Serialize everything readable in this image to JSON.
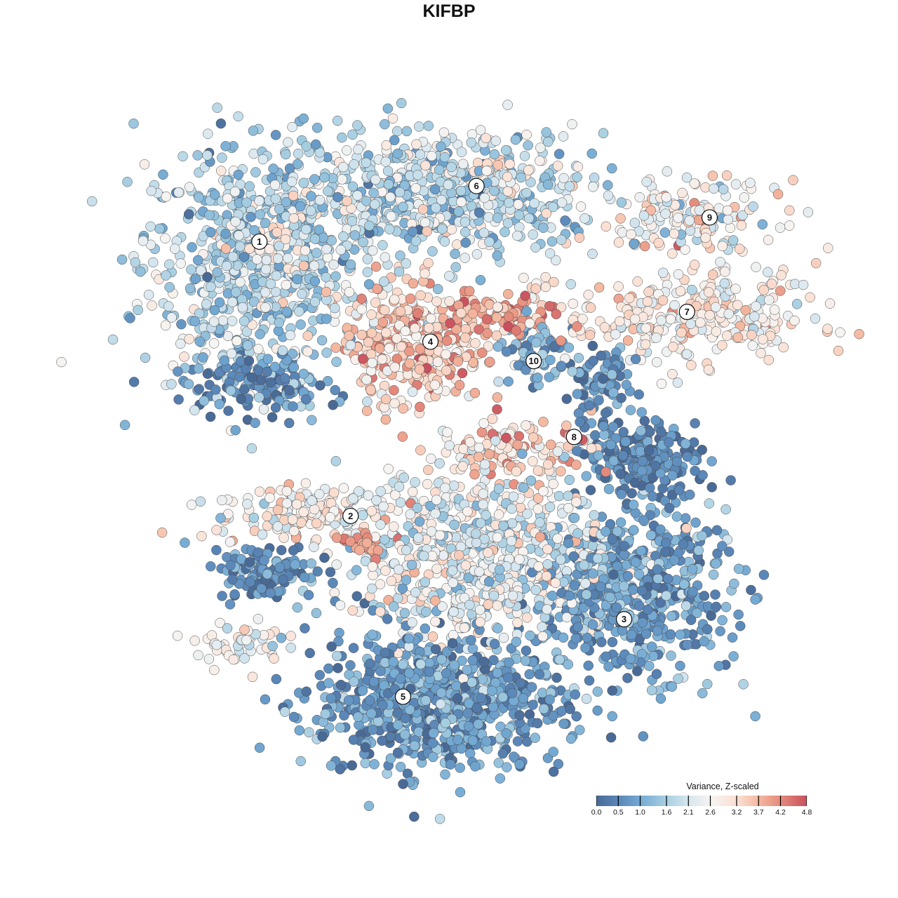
{
  "title": "KIFBP",
  "chart_data": {
    "type": "scatter",
    "title": "KIFBP",
    "xlabel": "",
    "ylabel": "",
    "xlim": [
      -38,
      43
    ],
    "ylim": [
      -40,
      40
    ],
    "grid": false,
    "colorbar": {
      "title": "Variance, Z-scaled",
      "range": [
        0.0,
        4.8
      ],
      "ticks": [
        "0.0",
        "0.5",
        "1.0",
        "1.6",
        "2.1",
        "2.6",
        "3.2",
        "3.7",
        "4.2",
        "4.8"
      ],
      "tick_values": [
        0.0,
        0.5,
        1.0,
        1.6,
        2.1,
        2.6,
        3.2,
        3.7,
        4.2,
        4.8
      ],
      "colors": [
        "#4a6a96",
        "#5a87b8",
        "#74aad3",
        "#a8cfe2",
        "#d6e6ef",
        "#f6f4f2",
        "#fbe0d3",
        "#f4b8a0",
        "#e58b7c",
        "#c8505e"
      ],
      "placement": "bottom-right"
    },
    "point_groups": [
      {
        "cluster": "1",
        "center": [
          -24.3,
          22.8
        ],
        "spread": [
          7,
          7.8
        ],
        "n": 650,
        "mean": 1.7,
        "sd": 0.6
      },
      {
        "cluster": "1",
        "center": [
          -20,
          25
        ],
        "spread": [
          3,
          4
        ],
        "n": 60,
        "mean": 3.0,
        "sd": 0.3
      },
      {
        "cluster": "1",
        "center": [
          -24,
          8
        ],
        "spread": [
          4,
          2
        ],
        "n": 120,
        "mean": 0.5,
        "sd": 0.4
      },
      {
        "cluster": "6",
        "center": [
          -1.7,
          31.3
        ],
        "spread": [
          10.4,
          3.9
        ],
        "n": 600,
        "mean": 1.8,
        "sd": 0.6
      },
      {
        "cluster": "6",
        "center": [
          6,
          34
        ],
        "spread": [
          3,
          1.5
        ],
        "n": 40,
        "mean": 3.0,
        "sd": 0.3
      },
      {
        "cluster": "4",
        "center": [
          -4.3,
          13.0
        ],
        "spread": [
          4.3,
          3.9
        ],
        "n": 320,
        "mean": 3.4,
        "sd": 0.6
      },
      {
        "cluster": "4",
        "center": [
          7,
          16.5
        ],
        "spread": [
          4,
          1.3
        ],
        "n": 90,
        "mean": 3.9,
        "sd": 0.5
      },
      {
        "cluster": "10",
        "center": [
          10.4,
          11.3
        ],
        "spread": [
          2.2,
          2.2
        ],
        "n": 60,
        "mean": 1.0,
        "sd": 0.5
      },
      {
        "cluster": "9",
        "center": [
          30.4,
          28.7
        ],
        "spread": [
          5.2,
          2.2
        ],
        "n": 150,
        "mean": 2.6,
        "sd": 0.7
      },
      {
        "cluster": "7",
        "center": [
          29.6,
          16.5
        ],
        "spread": [
          7.8,
          3
        ],
        "n": 300,
        "mean": 2.8,
        "sd": 0.5
      },
      {
        "cluster": "8",
        "center": [
          8,
          0
        ],
        "spread": [
          5,
          2
        ],
        "n": 110,
        "mean": 3.4,
        "sd": 0.6
      },
      {
        "cluster": "8",
        "center": [
          24.3,
          -0.9
        ],
        "spread": [
          3.5,
          2.2
        ],
        "n": 200,
        "mean": 0.4,
        "sd": 0.4
      },
      {
        "cluster": "8",
        "center": [
          18.3,
          7.8
        ],
        "spread": [
          2,
          2.5
        ],
        "n": 80,
        "mean": 0.5,
        "sd": 0.5
      },
      {
        "cluster": "2",
        "center": [
          -18.3,
          -7.8
        ],
        "spread": [
          5.2,
          1.7
        ],
        "n": 150,
        "mean": 2.8,
        "sd": 0.5
      },
      {
        "cluster": "2",
        "center": [
          -22.6,
          -15.2
        ],
        "spread": [
          3,
          1.7
        ],
        "n": 120,
        "mean": 0.6,
        "sd": 0.5
      },
      {
        "cluster": "2",
        "center": [
          -10.9,
          -11.7
        ],
        "spread": [
          1,
          0.8
        ],
        "n": 30,
        "mean": 4.0,
        "sd": 0.2
      },
      {
        "cluster": "central",
        "center": [
          3.5,
          -13
        ],
        "spread": [
          8.7,
          5.2
        ],
        "n": 700,
        "mean": 2.3,
        "sd": 0.6
      },
      {
        "cluster": "3",
        "center": [
          22.6,
          -17.4
        ],
        "spread": [
          6,
          5.2
        ],
        "n": 600,
        "mean": 0.9,
        "sd": 0.5
      },
      {
        "cluster": "5",
        "center": [
          -1.7,
          -31.3
        ],
        "spread": [
          7.8,
          4.3
        ],
        "n": 800,
        "mean": 0.8,
        "sd": 0.5
      },
      {
        "cluster": "left",
        "center": [
          -26,
          -24.3
        ],
        "spread": [
          2.6,
          1.3
        ],
        "n": 50,
        "mean": 2.5,
        "sd": 0.4
      }
    ],
    "cluster_labels": [
      {
        "label": "1",
        "x": -23.5,
        "y": 25.7
      },
      {
        "label": "2",
        "x": -12.2,
        "y": -8.3
      },
      {
        "label": "3",
        "x": 21.7,
        "y": -21.1
      },
      {
        "label": "4",
        "x": -2.3,
        "y": 13.3
      },
      {
        "label": "5",
        "x": -5.7,
        "y": -30.7
      },
      {
        "label": "6",
        "x": 3.4,
        "y": 32.6
      },
      {
        "label": "7",
        "x": 29.5,
        "y": 17.0
      },
      {
        "label": "8",
        "x": 15.5,
        "y": 1.5
      },
      {
        "label": "9",
        "x": 32.3,
        "y": 28.7
      },
      {
        "label": "10",
        "x": 10.5,
        "y": 10.9
      }
    ]
  }
}
